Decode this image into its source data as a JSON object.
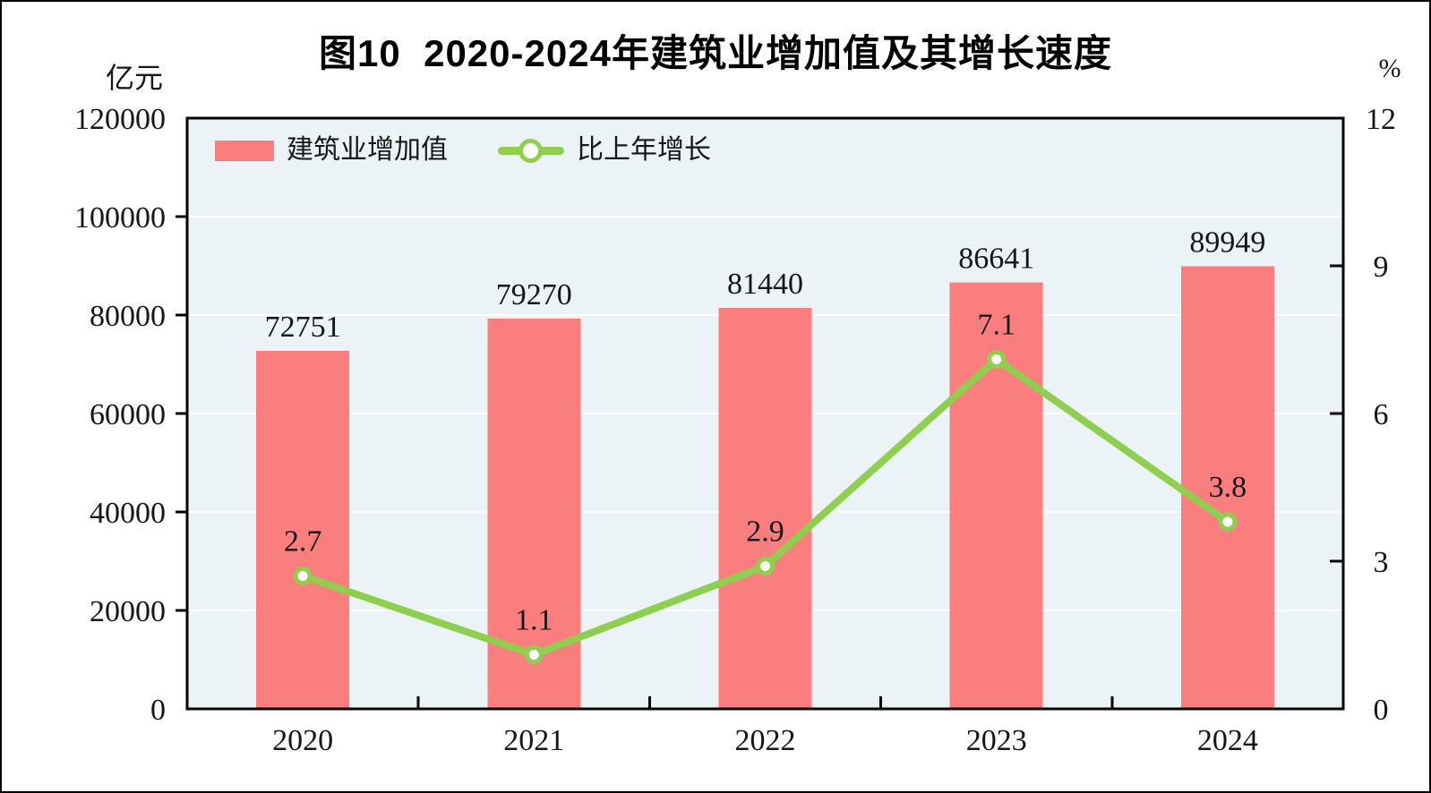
{
  "figure": {
    "title": "图10  2020-2024年建筑业增加值及其增长速度",
    "left_axis_unit": "亿元",
    "right_axis_unit": "%"
  },
  "legend": {
    "bar_label": "建筑业增加值",
    "line_label": "比上年增长"
  },
  "colors": {
    "bar": "#fb7e7e",
    "line": "#8ed04e",
    "marker_fill": "#ffffff",
    "plot_bg": "#ebf3f7",
    "grid": "#ffffff",
    "axis": "#000000",
    "text": "#161616",
    "title": "#000000"
  },
  "chart_data": {
    "type": "bar",
    "subtype": "combo-bar-line",
    "title": "图10  2020-2024年建筑业增加值及其增长速度",
    "categories": [
      "2020",
      "2021",
      "2022",
      "2023",
      "2024"
    ],
    "series": [
      {
        "name": "建筑业增加值",
        "type": "bar",
        "axis": "left",
        "unit": "亿元",
        "values": [
          72751,
          79270,
          81440,
          86641,
          89949
        ]
      },
      {
        "name": "比上年增长",
        "type": "line",
        "axis": "right",
        "unit": "%",
        "values": [
          2.7,
          1.1,
          2.9,
          7.1,
          3.8
        ]
      }
    ],
    "left_axis": {
      "label": "亿元",
      "min": 0,
      "max": 120000,
      "step": 20000,
      "ticks": [
        0,
        20000,
        40000,
        60000,
        80000,
        100000,
        120000
      ]
    },
    "right_axis": {
      "label": "%",
      "min": 0,
      "max": 12,
      "step": 3,
      "ticks": [
        0,
        3,
        6,
        9,
        12
      ]
    },
    "grid": true,
    "grid_color": "#ffffff",
    "plot_background": "#ebf3f7",
    "legend_position": "top-left-inside",
    "data_labels": true
  }
}
